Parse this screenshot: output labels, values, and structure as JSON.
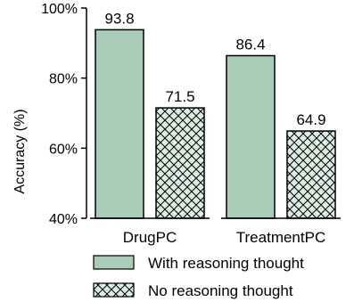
{
  "chart_data": {
    "type": "bar",
    "categories": [
      "DrugPC",
      "TreatmentPC"
    ],
    "series": [
      {
        "name": "With reasoning thought",
        "values": [
          93.8,
          86.4
        ],
        "pattern": "solid"
      },
      {
        "name": "No reasoning thought",
        "values": [
          71.5,
          64.9
        ],
        "pattern": "crosshatch"
      }
    ],
    "value_labels": [
      [
        "93.8",
        "86.4"
      ],
      [
        "71.5",
        "64.9"
      ]
    ],
    "ylabel": "Accuracy (%)",
    "ylim": [
      40,
      100
    ],
    "yticks": [
      40,
      60,
      80,
      100
    ],
    "ytick_labels": [
      "40%",
      "60%",
      "80%",
      "100%"
    ],
    "grid": false,
    "legend_position": "bottom",
    "colors": {
      "bar_fill": "#a9cdb9",
      "bar_stroke": "#000000",
      "hatch_bg": "#dcede3"
    }
  }
}
